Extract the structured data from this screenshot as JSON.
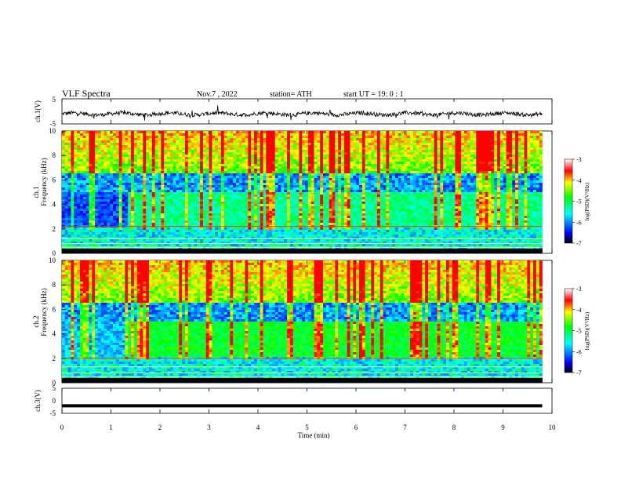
{
  "header": {
    "title": "VLF  Spectra",
    "date": "Nov.7  , 2022",
    "station": "station= ATH",
    "start_ut": "start  UT  =    19: 0  : 1"
  },
  "chart_data": [
    {
      "type": "line",
      "id": "ch1-waveform",
      "ylabel": "ch.1(V)",
      "ylim": [
        -5,
        5
      ],
      "yticks": [
        "5",
        "-5"
      ],
      "xlim": [
        0,
        10
      ],
      "x_end": 9.8,
      "description_series": "noisy waveform near -1 V"
    },
    {
      "type": "heatmap",
      "id": "ch1-spectrogram",
      "ylabel_top": "ch.1",
      "ylabel": "Frequency  (kHz)",
      "ylim": [
        0,
        10
      ],
      "yticks": [
        "0",
        "2",
        "4",
        "6",
        "8",
        "10"
      ],
      "xlim": [
        0,
        10
      ],
      "x_end": 9.8,
      "colorbar": {
        "label": "log(PSD)(V²/Hz)",
        "range": [
          -7,
          -3
        ],
        "ticks": [
          "-3",
          "-4",
          "-5",
          "-6",
          "-7"
        ],
        "colors": [
          "#000000",
          "#0000ff",
          "#00ffff",
          "#00ff00",
          "#ffff00",
          "#ff0000",
          "#ffffff"
        ]
      }
    },
    {
      "type": "heatmap",
      "id": "ch2-spectrogram",
      "ylabel_top": "ch.2",
      "ylabel": "Frequency  (kHz)",
      "ylim": [
        0,
        10
      ],
      "yticks": [
        "0",
        "2",
        "4",
        "6",
        "8",
        "10"
      ],
      "xlim": [
        0,
        10
      ],
      "x_end": 9.8,
      "colorbar": {
        "label": "log(PSD)(V²/Hz)",
        "range": [
          -7,
          -3
        ],
        "ticks": [
          "-3",
          "-4",
          "-5",
          "-6",
          "-7"
        ],
        "colors": [
          "#000000",
          "#0000ff",
          "#00ffff",
          "#00ff00",
          "#ffff00",
          "#ff0000",
          "#ffffff"
        ]
      }
    },
    {
      "type": "line",
      "id": "ch3-waveform",
      "ylabel": "ch.3(V)",
      "ylim": [
        -5,
        5
      ],
      "yticks": [
        "5",
        "0",
        "-5"
      ],
      "xlim": [
        0,
        10
      ],
      "x_end": 9.8,
      "value": -2,
      "xlabel": "Time  (min)",
      "xticks": [
        "0",
        "1",
        "2",
        "3",
        "4",
        "5",
        "6",
        "7",
        "8",
        "9",
        "10"
      ]
    }
  ]
}
